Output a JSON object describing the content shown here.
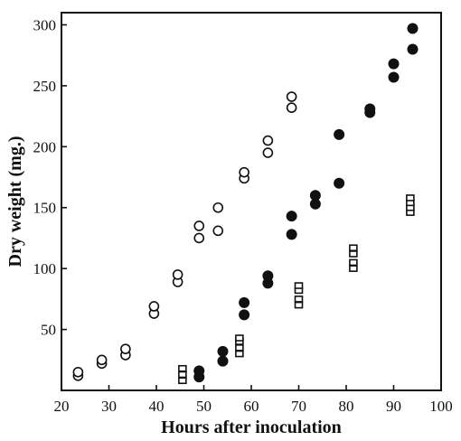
{
  "chart_data": {
    "type": "scatter",
    "xlabel": "Hours after inoculation",
    "ylabel": "Dry weight (mg.)",
    "xlim": [
      20,
      100
    ],
    "ylim": [
      0,
      310
    ],
    "xticks": [
      20,
      30,
      40,
      50,
      60,
      70,
      80,
      90,
      100
    ],
    "yticks": [
      50,
      100,
      150,
      200,
      250,
      300
    ],
    "grid": false,
    "series": [
      {
        "marker": "open-circle",
        "color": "#111111",
        "points": [
          [
            23.5,
            12
          ],
          [
            23.5,
            15
          ],
          [
            28.5,
            22
          ],
          [
            28.5,
            25
          ],
          [
            33.5,
            29
          ],
          [
            33.5,
            34
          ],
          [
            39.5,
            63
          ],
          [
            39.5,
            69
          ],
          [
            44.5,
            89
          ],
          [
            44.5,
            95
          ],
          [
            49,
            125
          ],
          [
            49,
            135
          ],
          [
            53,
            131
          ],
          [
            53,
            150
          ],
          [
            58.5,
            174
          ],
          [
            58.5,
            179
          ],
          [
            63.5,
            195
          ],
          [
            63.5,
            205
          ],
          [
            68.5,
            232
          ],
          [
            68.5,
            241
          ]
        ]
      },
      {
        "marker": "filled-circle",
        "color": "#111111",
        "points": [
          [
            49,
            11
          ],
          [
            49,
            16
          ],
          [
            54,
            24
          ],
          [
            54,
            32
          ],
          [
            58.5,
            62
          ],
          [
            58.5,
            72
          ],
          [
            63.5,
            88
          ],
          [
            63.5,
            94
          ],
          [
            68.5,
            128
          ],
          [
            68.5,
            143
          ],
          [
            73.5,
            153
          ],
          [
            73.5,
            160
          ],
          [
            78.5,
            170
          ],
          [
            78.5,
            210
          ],
          [
            85,
            228
          ],
          [
            85,
            231
          ],
          [
            90,
            257
          ],
          [
            90,
            268
          ],
          [
            94,
            280
          ],
          [
            94,
            297
          ]
        ]
      },
      {
        "marker": "open-square",
        "color": "#111111",
        "points": [
          [
            45.5,
            8
          ],
          [
            45.5,
            13
          ],
          [
            45.5,
            18
          ],
          [
            57.5,
            30
          ],
          [
            57.5,
            35
          ],
          [
            57.5,
            40
          ],
          [
            57.5,
            43
          ],
          [
            70,
            70
          ],
          [
            70,
            75
          ],
          [
            70,
            82
          ],
          [
            70,
            86
          ],
          [
            81.5,
            100
          ],
          [
            81.5,
            105
          ],
          [
            81.5,
            112
          ],
          [
            81.5,
            117
          ],
          [
            93.5,
            146
          ],
          [
            93.5,
            150
          ],
          [
            93.5,
            154
          ],
          [
            93.5,
            158
          ]
        ]
      }
    ]
  }
}
